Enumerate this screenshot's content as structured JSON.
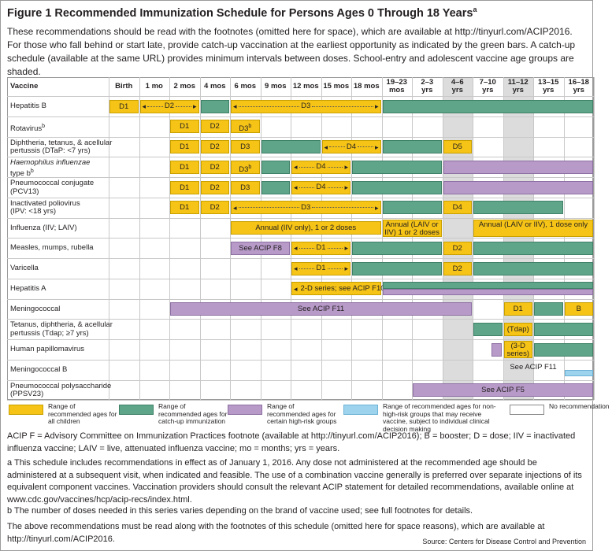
{
  "figure": {
    "title_main": "Figure 1  Recommended Immunization Schedule for Persons Ages 0 Through 18 Years",
    "title_sup": "a",
    "intro": "These recommendations should be read with the footnotes (omitted here for space), which are available at http://tinyurl.com/ACIP2016. For those who fall behind or start late, provide catch-up vaccination at the earliest opportunity as indicated by the green bars. A catch-up schedule (available at the same URL) provides minimum intervals between doses. School-entry and adolescent vaccine age groups are shaded."
  },
  "table": {
    "header_vaccine": "Vaccine",
    "columns": [
      "Birth",
      "1 mo",
      "2 mos",
      "4 mos",
      "6 mos",
      "9 mos",
      "12 mos",
      "15 mos",
      "18 mos",
      "19–23 mos",
      "2–3 yrs",
      "4–6 yrs",
      "7–10 yrs",
      "11–12 yrs",
      "13–15 yrs",
      "16–18 yrs"
    ],
    "shaded_columns": [
      "4–6 yrs",
      "11–12 yrs"
    ],
    "rows": [
      {
        "name": "Hepatitis B",
        "sup": "",
        "sub": ""
      },
      {
        "name": "Rotavirus",
        "sup": "b",
        "sub": ""
      },
      {
        "name": "Diphtheria, tetanus, & acellular",
        "sup": "",
        "sub": "pertussis (DTaP: <7 yrs)"
      },
      {
        "name": "Haemophilus influenzae",
        "sup": "",
        "sub": "type b",
        "sub_sup": "b",
        "italic": true
      },
      {
        "name": "Pneumococcal conjugate",
        "sup": "",
        "sub": "(PCV13)"
      },
      {
        "name": "Inactivated poliovirus",
        "sup": "",
        "sub": "(IPV: <18 yrs)"
      },
      {
        "name": "Influenza (IIV; LAIV)",
        "sup": "",
        "sub": ""
      },
      {
        "name": "Measles, mumps, rubella",
        "sup": "",
        "sub": ""
      },
      {
        "name": "Varicella",
        "sup": "",
        "sub": ""
      },
      {
        "name": "Hepatitis A",
        "sup": "",
        "sub": ""
      },
      {
        "name": "Meningococcal",
        "sup": "",
        "sub": ""
      },
      {
        "name": "Tetanus, diphtheria, & acellular",
        "sup": "",
        "sub": "pertussis (Tdap; ≥7 yrs)"
      },
      {
        "name": "Human papillomavirus",
        "sup": "",
        "sub": ""
      },
      {
        "name": "Meningococcal B",
        "sup": "",
        "sub": ""
      },
      {
        "name": "Pneumococcal polysaccharide",
        "sup": "",
        "sub": "(PPSV23)"
      }
    ],
    "bars": [
      {
        "row": 0,
        "from": 0,
        "to": 1,
        "kind": "yellow",
        "label": "D1"
      },
      {
        "row": 0,
        "from": 1,
        "to": 3,
        "kind": "yellow",
        "label": "D2",
        "arrow": true
      },
      {
        "row": 0,
        "from": 3,
        "to": 4,
        "kind": "green",
        "label": ""
      },
      {
        "row": 0,
        "from": 4,
        "to": 9,
        "kind": "yellow",
        "label": "D3",
        "arrow": true
      },
      {
        "row": 0,
        "from": 9,
        "to": 16,
        "kind": "green",
        "label": ""
      },
      {
        "row": 1,
        "from": 2,
        "to": 3,
        "kind": "yellow",
        "label": "D1"
      },
      {
        "row": 1,
        "from": 3,
        "to": 4,
        "kind": "yellow",
        "label": "D2"
      },
      {
        "row": 1,
        "from": 4,
        "to": 5,
        "kind": "yellow",
        "label": "D3",
        "label_sup": "b"
      },
      {
        "row": 2,
        "from": 2,
        "to": 3,
        "kind": "yellow",
        "label": "D1"
      },
      {
        "row": 2,
        "from": 3,
        "to": 4,
        "kind": "yellow",
        "label": "D2"
      },
      {
        "row": 2,
        "from": 4,
        "to": 5,
        "kind": "yellow",
        "label": "D3"
      },
      {
        "row": 2,
        "from": 5,
        "to": 7,
        "kind": "green",
        "label": ""
      },
      {
        "row": 2,
        "from": 7,
        "to": 9,
        "kind": "yellow",
        "label": "D4",
        "arrow": true
      },
      {
        "row": 2,
        "from": 9,
        "to": 11,
        "kind": "green",
        "label": ""
      },
      {
        "row": 2,
        "from": 11,
        "to": 12,
        "kind": "yellow",
        "label": "D5"
      },
      {
        "row": 3,
        "from": 2,
        "to": 3,
        "kind": "yellow",
        "label": "D1"
      },
      {
        "row": 3,
        "from": 3,
        "to": 4,
        "kind": "yellow",
        "label": "D2"
      },
      {
        "row": 3,
        "from": 4,
        "to": 5,
        "kind": "yellow",
        "label": "D3",
        "label_sup": "b"
      },
      {
        "row": 3,
        "from": 5,
        "to": 6,
        "kind": "green",
        "label": ""
      },
      {
        "row": 3,
        "from": 6,
        "to": 8,
        "kind": "yellow",
        "label": "D4",
        "arrow": true
      },
      {
        "row": 3,
        "from": 8,
        "to": 11,
        "kind": "green",
        "label": ""
      },
      {
        "row": 3,
        "from": 11,
        "to": 16,
        "kind": "purple",
        "label": ""
      },
      {
        "row": 4,
        "from": 2,
        "to": 3,
        "kind": "yellow",
        "label": "D1"
      },
      {
        "row": 4,
        "from": 3,
        "to": 4,
        "kind": "yellow",
        "label": "D2"
      },
      {
        "row": 4,
        "from": 4,
        "to": 5,
        "kind": "yellow",
        "label": "D3"
      },
      {
        "row": 4,
        "from": 5,
        "to": 6,
        "kind": "green",
        "label": ""
      },
      {
        "row": 4,
        "from": 6,
        "to": 8,
        "kind": "yellow",
        "label": "D4",
        "arrow": true
      },
      {
        "row": 4,
        "from": 8,
        "to": 11,
        "kind": "green",
        "label": ""
      },
      {
        "row": 4,
        "from": 11,
        "to": 16,
        "kind": "purple",
        "label": ""
      },
      {
        "row": 5,
        "from": 2,
        "to": 3,
        "kind": "yellow",
        "label": "D1"
      },
      {
        "row": 5,
        "from": 3,
        "to": 4,
        "kind": "yellow",
        "label": "D2"
      },
      {
        "row": 5,
        "from": 4,
        "to": 9,
        "kind": "yellow",
        "label": "D3",
        "arrow": true
      },
      {
        "row": 5,
        "from": 9,
        "to": 11,
        "kind": "green",
        "label": ""
      },
      {
        "row": 5,
        "from": 11,
        "to": 12,
        "kind": "yellow",
        "label": "D4"
      },
      {
        "row": 5,
        "from": 12,
        "to": 15,
        "kind": "green",
        "label": ""
      },
      {
        "row": 6,
        "from": 4,
        "to": 9,
        "kind": "yellow",
        "label": "Annual (IIV only), 1 or 2 doses"
      },
      {
        "row": 6,
        "from": 9,
        "to": 11,
        "kind": "yellow",
        "label": "Annual (LAIV or IIV) 1 or 2 doses",
        "tall": true
      },
      {
        "row": 6,
        "from": 12,
        "to": 16,
        "kind": "yellow",
        "label": "Annual (LAIV or IIV), 1 dose only",
        "tall": true
      },
      {
        "row": 7,
        "from": 4,
        "to": 6,
        "kind": "purple",
        "label": "See ACIP F8"
      },
      {
        "row": 7,
        "from": 6,
        "to": 8,
        "kind": "yellow",
        "label": "D1",
        "arrow": true
      },
      {
        "row": 7,
        "from": 8,
        "to": 11,
        "kind": "green",
        "label": ""
      },
      {
        "row": 7,
        "from": 11,
        "to": 12,
        "kind": "yellow",
        "label": "D2"
      },
      {
        "row": 7,
        "from": 12,
        "to": 16,
        "kind": "green",
        "label": ""
      },
      {
        "row": 8,
        "from": 6,
        "to": 8,
        "kind": "yellow",
        "label": "D1",
        "arrow": true
      },
      {
        "row": 8,
        "from": 8,
        "to": 11,
        "kind": "green",
        "label": ""
      },
      {
        "row": 8,
        "from": 11,
        "to": 12,
        "kind": "yellow",
        "label": "D2"
      },
      {
        "row": 8,
        "from": 12,
        "to": 16,
        "kind": "green",
        "label": ""
      },
      {
        "row": 9,
        "from": 6,
        "to": 9,
        "kind": "yellow",
        "label": "2-D series; see ACIP F10",
        "arrow": true
      },
      {
        "row": 9,
        "from": 9,
        "to": 16,
        "kind": "purple",
        "label": "",
        "half": "bottom"
      },
      {
        "row": 9,
        "from": 9,
        "to": 16,
        "kind": "green",
        "label": "",
        "half": "top"
      },
      {
        "row": 10,
        "from": 2,
        "to": 12,
        "kind": "purple",
        "label": "See ACIP F11"
      },
      {
        "row": 10,
        "from": 13,
        "to": 14,
        "kind": "yellow",
        "label": "D1"
      },
      {
        "row": 10,
        "from": 14,
        "to": 15,
        "kind": "green",
        "label": ""
      },
      {
        "row": 10,
        "from": 15,
        "to": 16,
        "kind": "yellow",
        "label": "B"
      },
      {
        "row": 11,
        "from": 12,
        "to": 13,
        "kind": "green",
        "label": ""
      },
      {
        "row": 11,
        "from": 13,
        "to": 14,
        "kind": "yellow",
        "label": "(Tdap)"
      },
      {
        "row": 11,
        "from": 14,
        "to": 16,
        "kind": "green",
        "label": ""
      },
      {
        "row": 12,
        "from": 12,
        "to": 13,
        "kind": "purple",
        "label": "",
        "narrow": true
      },
      {
        "row": 12,
        "from": 13,
        "to": 14,
        "kind": "yellow",
        "label": "(3-D series)",
        "tall": true
      },
      {
        "row": 12,
        "from": 14,
        "to": 16,
        "kind": "green",
        "label": ""
      },
      {
        "row": 13,
        "from": 12,
        "to": 16,
        "kind": "purple",
        "label": "See ACIP F11",
        "half": "top"
      },
      {
        "row": 13,
        "from": 15,
        "to": 16,
        "kind": "blue",
        "label": "",
        "half": "bottom"
      },
      {
        "row": 14,
        "from": 10,
        "to": 16,
        "kind": "purple",
        "label": "See ACIP F5"
      }
    ]
  },
  "legend": [
    {
      "color": "#f6c416",
      "border": "#c8a000",
      "text": "Range of recommended ages for all children"
    },
    {
      "color": "#5ea58a",
      "border": "#3f8167",
      "text": "Range of recommended ages for catch-up immunization"
    },
    {
      "color": "#b79ac8",
      "border": "#8d6fa3",
      "text": "Range of recommended ages for certain high-risk groups"
    },
    {
      "color": "#9ed3ee",
      "border": "#6bb2d6",
      "text": "Range of recommended ages for non-high-risk groups that may receive vaccine, subject to individual clinical decision making"
    },
    {
      "color": "#ffffff",
      "border": "#888888",
      "text": "No recommendation"
    }
  ],
  "notes": {
    "abbrev": "ACIP F = Advisory Committee on Immunization Practices footnote (available at http://tinyurl.com/ACIP2016); B = booster; D = dose; IIV = inactivated influenza vaccine; LAIV = live, attenuated influenza vaccine; mo = months; yrs = years.",
    "a": "a  This schedule includes recommendations in effect as of January 1, 2016. Any dose not administered at the recommended age should be administered at a subsequent visit, when indicated and feasible. The use of a combination vaccine generally is preferred over separate injections of its equivalent component vaccines. Vaccination providers should consult the relevant ACIP statement for detailed recommendations, available online at www.cdc.gov/vaccines/hcp/acip-recs/index.html.",
    "b": "b  The number of doses needed in this series varies depending on the brand of vaccine used; see full footnotes for details.",
    "closing": "The above recommendations must be read along with the footnotes of this schedule (omitted here for space reasons), which are available at http://tinyurl.com/ACIP2016.",
    "source": "Source: Centers for Disease Control and Prevention"
  }
}
